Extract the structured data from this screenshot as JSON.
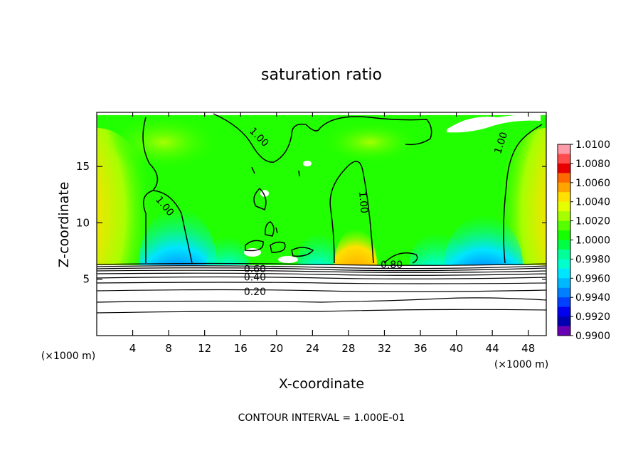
{
  "chart_data": {
    "type": "heatmap",
    "title": "saturation ratio",
    "xlabel": "X-coordinate",
    "ylabel": "Z-coordinate",
    "x_unit": "(×1000 m)",
    "z_unit": "(×1000 m)",
    "xlim": [
      0,
      50
    ],
    "ylim": [
      0,
      19.8
    ],
    "x_ticks": [
      4,
      8,
      12,
      16,
      20,
      24,
      28,
      32,
      36,
      40,
      44,
      48
    ],
    "y_ticks": [
      5,
      10,
      15
    ],
    "grid": false,
    "legend": "right",
    "colorbar": {
      "min": 0.99,
      "max": 1.01,
      "step": 0.001,
      "labels": [
        "1.0100",
        "1.0080",
        "1.0060",
        "1.0040",
        "1.0020",
        "1.0000",
        "0.9980",
        "0.9960",
        "0.9940",
        "0.9920",
        "0.9900"
      ],
      "colors": [
        "#ff9aa8",
        "#ff4d4d",
        "#e80000",
        "#ff6a00",
        "#ffa500",
        "#ffe000",
        "#e6ff00",
        "#a6ff00",
        "#55ff00",
        "#15ff00",
        "#00ff44",
        "#00ff99",
        "#00ffcc",
        "#00e5ff",
        "#00b8ff",
        "#0080ff",
        "#0040ff",
        "#0000ee",
        "#0000b0",
        "#6a00b4"
      ]
    },
    "contour_labels": [
      {
        "text": "1.00",
        "x": 17.8,
        "y": 17.4,
        "rot": 45
      },
      {
        "text": "1.00",
        "x": 7.3,
        "y": 11.3,
        "rot": 50
      },
      {
        "text": "1.00",
        "x": 29.3,
        "y": 11.8,
        "rot": 85
      },
      {
        "text": "1.00",
        "x": 45.3,
        "y": 17.0,
        "rot": -72
      },
      {
        "text": "0.80",
        "x": 32.8,
        "y": 6.0,
        "rot": 0
      },
      {
        "text": "0.60",
        "x": 17.6,
        "y": 5.6,
        "rot": 0
      },
      {
        "text": "0.40",
        "x": 17.6,
        "y": 4.9,
        "rot": 0
      },
      {
        "text": "0.20",
        "x": 17.6,
        "y": 3.6,
        "rot": 0
      }
    ],
    "annotation": "CONTOUR INTERVAL = 1.000E-01"
  }
}
